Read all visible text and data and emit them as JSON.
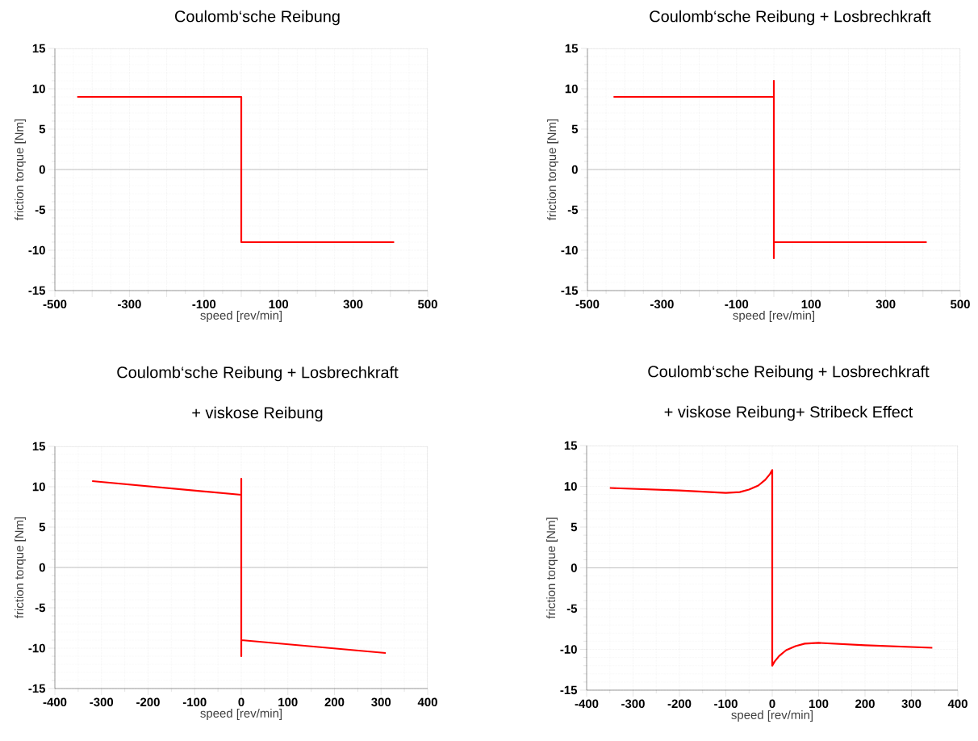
{
  "chart_data": [
    {
      "type": "line",
      "title": "Coulomb‘sche Reibung",
      "xlabel": "speed [rev/min]",
      "ylabel": "friction torque [Nm]",
      "xlim": [
        -500,
        500
      ],
      "xticks": [
        -500,
        {
          "value": -400,
          "label": null
        },
        -300,
        {
          "value": -200,
          "label": null
        },
        -100,
        {
          "value": 0,
          "label": null
        },
        100,
        {
          "value": 200,
          "label": null
        },
        300,
        {
          "value": 400,
          "label": null
        },
        500
      ],
      "ylim": [
        -15,
        15
      ],
      "yticks": [
        -15,
        -10,
        -5,
        0,
        5,
        10,
        15
      ],
      "grid": true,
      "line_style": "solid",
      "ref_lines": [
        {
          "axis": "y",
          "value": 0,
          "color": "#c0c0c0"
        }
      ],
      "series": [
        {
          "color": "#ff0000",
          "x": [
            -440,
            0,
            0,
            410
          ],
          "values": [
            9,
            9,
            -9,
            -9
          ]
        }
      ]
    },
    {
      "type": "line",
      "title": "Coulomb‘sche Reibung + Losbrechkraft",
      "xlabel": "speed [rev/min]",
      "ylabel": "friction torque [Nm]",
      "xlim": [
        -500,
        500
      ],
      "xticks": [
        -500,
        {
          "value": -400,
          "label": null
        },
        -300,
        {
          "value": -200,
          "label": null
        },
        -100,
        {
          "value": 0,
          "label": null
        },
        100,
        {
          "value": 200,
          "label": null
        },
        300,
        {
          "value": 400,
          "label": null
        },
        500
      ],
      "ylim": [
        -15,
        15
      ],
      "yticks": [
        -15,
        -10,
        -5,
        0,
        5,
        10,
        15
      ],
      "grid": true,
      "line_style": "solid",
      "ref_lines": [
        {
          "axis": "y",
          "value": 0,
          "color": "#c0c0c0"
        }
      ],
      "series": [
        {
          "color": "#ff0000",
          "x": [
            -430,
            0,
            0,
            0,
            0,
            410
          ],
          "values": [
            9,
            9,
            11,
            -11,
            -9,
            -9
          ]
        }
      ]
    },
    {
      "type": "line",
      "title": "Coulomb‘sche Reibung + Losbrechkraft",
      "subtitle": "+ viskose Reibung",
      "xlabel": "speed [rev/min]",
      "ylabel": "friction torque [Nm]",
      "xlim": [
        -400,
        400
      ],
      "xticks": [
        -400,
        -300,
        -200,
        -100,
        0,
        100,
        200,
        300,
        400
      ],
      "ylim": [
        -15,
        15
      ],
      "yticks": [
        -15,
        -10,
        -5,
        0,
        5,
        10,
        15
      ],
      "grid": true,
      "line_style": "solid",
      "ref_lines": [
        {
          "axis": "y",
          "value": 0,
          "color": "#c0c0c0"
        }
      ],
      "series": [
        {
          "color": "#ff0000",
          "x": [
            -320,
            0,
            0,
            0,
            0,
            310
          ],
          "values": [
            10.7,
            9,
            11,
            -11,
            -9,
            -10.6
          ]
        }
      ]
    },
    {
      "type": "line",
      "title": "Coulomb‘sche Reibung + Losbrechkraft",
      "subtitle": "+ viskose Reibung+ Stribeck Effect",
      "xlabel": "speed [rev/min]",
      "ylabel": "friction torque [Nm]",
      "xlim": [
        -400,
        400
      ],
      "xticks": [
        -400,
        -300,
        -200,
        -100,
        0,
        100,
        200,
        300,
        400
      ],
      "ylim": [
        -15,
        15
      ],
      "yticks": [
        -15,
        -10,
        -5,
        0,
        5,
        10,
        15
      ],
      "grid": true,
      "line_style": "solid",
      "ref_lines": [
        {
          "axis": "y",
          "value": 0,
          "color": "#c0c0c0"
        }
      ],
      "series": [
        {
          "color": "#ff0000",
          "x": [
            -350,
            -200,
            -100,
            -70,
            -50,
            -30,
            -15,
            -5,
            0,
            0,
            5,
            15,
            30,
            50,
            70,
            100,
            200,
            345
          ],
          "values": [
            9.8,
            9.5,
            9.2,
            9.3,
            9.6,
            10.1,
            10.8,
            11.5,
            12,
            -12,
            -11.5,
            -10.8,
            -10.1,
            -9.6,
            -9.3,
            -9.2,
            -9.5,
            -9.8
          ]
        }
      ]
    }
  ]
}
